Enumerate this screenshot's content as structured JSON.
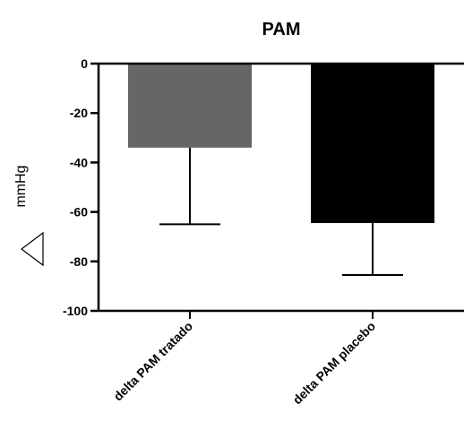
{
  "chart_data": {
    "type": "bar",
    "title": "PAM",
    "xlabel": "",
    "ylabel": "mmHg",
    "ylabel_symbol_icon": "delta-triangle-icon",
    "categories": [
      "delta PAM tratado",
      "delta PAM placebo"
    ],
    "series": [
      {
        "values": [
          -34,
          -64.5
        ],
        "errors": [
          31,
          21
        ],
        "colors": [
          "#666666",
          "#000000"
        ]
      }
    ],
    "ylim": [
      -100,
      0
    ],
    "yticks": [
      0,
      -20,
      -40,
      -60,
      -80,
      -100
    ],
    "ytick_labels": [
      "0",
      "-20",
      "-40",
      "-60",
      "-80",
      "-100"
    ],
    "error_bar_direction": "down",
    "grid": false,
    "legend": "none"
  }
}
